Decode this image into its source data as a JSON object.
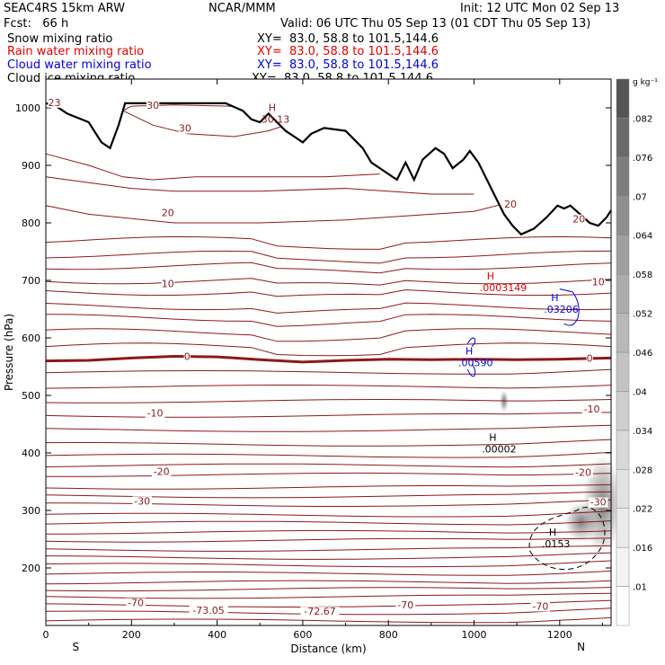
{
  "header": {
    "model": "SEAC4RS 15km ARW",
    "org": "NCAR/MMM",
    "init": "Init: 12 UTC Mon 02 Sep 13",
    "fcst": "Fcst:   66 h",
    "valid": "Valid: 06 UTC Thu 05 Sep 13 (01 CDT Thu 05 Sep 13)",
    "fields": [
      {
        "name": "Snow mixing ratio",
        "xy": "XY=  83.0, 58.8 to 101.5,144.6",
        "color": "#000000"
      },
      {
        "name": "Rain water mixing ratio",
        "xy": "XY=  83.0, 58.8 to 101.5,144.6",
        "color": "#e00000"
      },
      {
        "name": "Cloud water mixing ratio",
        "xy": "XY=  83.0, 58.8 to 101.5,144.6",
        "color": "#0000dd"
      },
      {
        "name": "Cloud ice mixing ratio",
        "xy": "XY=  83.0, 58.8 to 101.5,144.6",
        "color": "#000000"
      }
    ]
  },
  "chart_data": {
    "type": "contour-cross-section",
    "xlabel": "Distance (km)",
    "ylabel": "Pressure (hPa)",
    "xlim": [
      0,
      1320
    ],
    "ylim": [
      1050,
      100
    ],
    "x_ticks": [
      0,
      200,
      400,
      600,
      800,
      1000,
      1200
    ],
    "y_ticks": [
      200,
      300,
      400,
      500,
      600,
      700,
      800,
      900,
      1000
    ],
    "end_labels": {
      "left": "S",
      "right": "N"
    },
    "colorbar": {
      "units": "g kg⁻¹",
      "levels": [
        ".01",
        ".016",
        ".022",
        ".028",
        ".034",
        ".04",
        ".046",
        ".052",
        ".058",
        ".064",
        ".07",
        ".076",
        ".082"
      ],
      "colors": [
        "#ffffff",
        "#f4f4f4",
        "#ebebeb",
        "#e2e2e2",
        "#d8d8d8",
        "#cecece",
        "#c3c3c3",
        "#b8b8b8",
        "#acacac",
        "#9f9f9f",
        "#8f8f8f",
        "#7d7d7d",
        "#6a6a6a",
        "#555555"
      ]
    },
    "temperature_contours": {
      "color": "#8b1a1a",
      "labels": [
        {
          "text": "-73.05",
          "x": 380,
          "p": 122
        },
        {
          "text": "-72.67",
          "x": 640,
          "p": 120
        },
        {
          "text": "-70",
          "x": 210,
          "p": 135
        },
        {
          "text": "-70",
          "x": 840,
          "p": 131
        },
        {
          "text": "-70",
          "x": 1155,
          "p": 129
        },
        {
          "text": "-30",
          "x": 225,
          "p": 312
        },
        {
          "text": "-30",
          "x": 1290,
          "p": 310
        },
        {
          "text": "-20",
          "x": 270,
          "p": 363
        },
        {
          "text": "-20",
          "x": 1255,
          "p": 362
        },
        {
          "text": "-10",
          "x": 255,
          "p": 465
        },
        {
          "text": "-10",
          "x": 1275,
          "p": 472
        },
        {
          "text": "0",
          "x": 330,
          "p": 563
        },
        {
          "text": "0",
          "x": 1270,
          "p": 560
        },
        {
          "text": "10",
          "x": 285,
          "p": 690
        },
        {
          "text": "10",
          "x": 1290,
          "p": 693
        },
        {
          "text": "20",
          "x": 285,
          "p": 813
        },
        {
          "text": "20",
          "x": 1245,
          "p": 802
        },
        {
          "text": "20",
          "x": 1085,
          "p": 828
        },
        {
          "text": "30",
          "x": 325,
          "p": 960
        },
        {
          "text": "30",
          "x": 250,
          "p": 1000
        },
        {
          "text": "23",
          "x": 20,
          "p": 1005
        }
      ],
      "extrema": [
        {
          "symbol": "H",
          "value": ".00002",
          "x": 1035,
          "p": 415
        },
        {
          "symbol": "H",
          "value": "30.13",
          "x": 520,
          "p": 988
        }
      ]
    },
    "snow": {
      "symbol": "H",
      "value": ".0153",
      "x": 1175,
      "p": 250
    },
    "rain": {
      "symbol": "H",
      "value": ".0003149",
      "x": 1030,
      "p": 695
    },
    "cloud_water": [
      {
        "symbol": "H",
        "value": ".00590",
        "x": 980,
        "p": 565
      },
      {
        "symbol": "H",
        "value": ".03206",
        "x": 1180,
        "p": 658
      }
    ],
    "cloud_ice": {
      "symbol": "H",
      "value": ".0153",
      "x": 1175,
      "p": 250
    },
    "terrain_pressure": [
      [
        0,
        1008
      ],
      [
        20,
        1005
      ],
      [
        50,
        990
      ],
      [
        100,
        975
      ],
      [
        130,
        940
      ],
      [
        150,
        930
      ],
      [
        170,
        970
      ],
      [
        185,
        1008
      ],
      [
        240,
        1008
      ],
      [
        300,
        1008
      ],
      [
        360,
        1008
      ],
      [
        420,
        1008
      ],
      [
        460,
        995
      ],
      [
        480,
        980
      ],
      [
        500,
        975
      ],
      [
        520,
        990
      ],
      [
        540,
        975
      ],
      [
        560,
        960
      ],
      [
        580,
        950
      ],
      [
        600,
        940
      ],
      [
        620,
        955
      ],
      [
        650,
        965
      ],
      [
        700,
        960
      ],
      [
        740,
        930
      ],
      [
        760,
        905
      ],
      [
        790,
        890
      ],
      [
        820,
        875
      ],
      [
        840,
        905
      ],
      [
        860,
        875
      ],
      [
        880,
        910
      ],
      [
        910,
        930
      ],
      [
        930,
        920
      ],
      [
        950,
        895
      ],
      [
        975,
        910
      ],
      [
        990,
        925
      ],
      [
        1010,
        905
      ],
      [
        1040,
        860
      ],
      [
        1070,
        815
      ],
      [
        1090,
        795
      ],
      [
        1110,
        780
      ],
      [
        1140,
        790
      ],
      [
        1170,
        810
      ],
      [
        1195,
        830
      ],
      [
        1210,
        825
      ],
      [
        1225,
        830
      ],
      [
        1240,
        820
      ],
      [
        1270,
        800
      ],
      [
        1290,
        795
      ],
      [
        1310,
        810
      ],
      [
        1320,
        822
      ]
    ]
  }
}
